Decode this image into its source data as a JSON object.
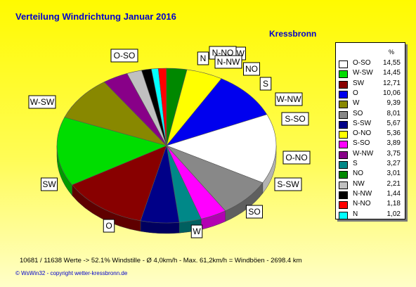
{
  "page": {
    "title": "Verteilung Windrichtung   Januar 2016",
    "subtitle": "Kressbronn",
    "footer": "10681 / 11638 Werte  -> 52.1% Windstille   -   Ø 4,0km/h  -  Max. 61,2km/h = Windböen   -   2698.4 km",
    "copyright": "© WsWin32  -  copyright wetter-kressbronn.de"
  },
  "chart_data": {
    "type": "pie",
    "title": "Verteilung Windrichtung   Januar 2016",
    "subtitle": "Kressbronn",
    "legend_header": "%",
    "legend_position": "right",
    "slices": [
      {
        "name": "O-SO",
        "value": 14.55,
        "label": "14,55",
        "color": "#ffffff"
      },
      {
        "name": "W-SW",
        "value": 14.45,
        "label": "14,45",
        "color": "#00dd00"
      },
      {
        "name": "SW",
        "value": 12.71,
        "label": "12,71",
        "color": "#880000"
      },
      {
        "name": "O",
        "value": 10.06,
        "label": "10,06",
        "color": "#0000ee"
      },
      {
        "name": "W",
        "value": 9.39,
        "label": "9,39",
        "color": "#888800"
      },
      {
        "name": "SO",
        "value": 8.01,
        "label": "8,01",
        "color": "#888888"
      },
      {
        "name": "S-SW",
        "value": 5.67,
        "label": "5,67",
        "color": "#000088"
      },
      {
        "name": "O-NO",
        "value": 5.36,
        "label": "5,36",
        "color": "#ffff00"
      },
      {
        "name": "S-SO",
        "value": 3.89,
        "label": "3,89",
        "color": "#ff00ff"
      },
      {
        "name": "W-NW",
        "value": 3.75,
        "label": "3,75",
        "color": "#880088"
      },
      {
        "name": "S",
        "value": 3.27,
        "label": "3,27",
        "color": "#008888"
      },
      {
        "name": "NO",
        "value": 3.01,
        "label": "3,01",
        "color": "#008800"
      },
      {
        "name": "NW",
        "value": 2.21,
        "label": "2,21",
        "color": "#c0c0c0"
      },
      {
        "name": "N-NW",
        "value": 1.44,
        "label": "1,44",
        "color": "#000000"
      },
      {
        "name": "N-NO",
        "value": 1.18,
        "label": "1,18",
        "color": "#ff0000"
      },
      {
        "name": "N",
        "value": 1.02,
        "label": "1,02",
        "color": "#00ffff"
      }
    ],
    "pie_order": [
      "N",
      "N-NO",
      "NO",
      "O-NO",
      "O",
      "O-SO",
      "SO",
      "S-SO",
      "S",
      "S-SW",
      "SW",
      "W-SW",
      "W",
      "W-NW",
      "NW",
      "N-NW"
    ]
  }
}
